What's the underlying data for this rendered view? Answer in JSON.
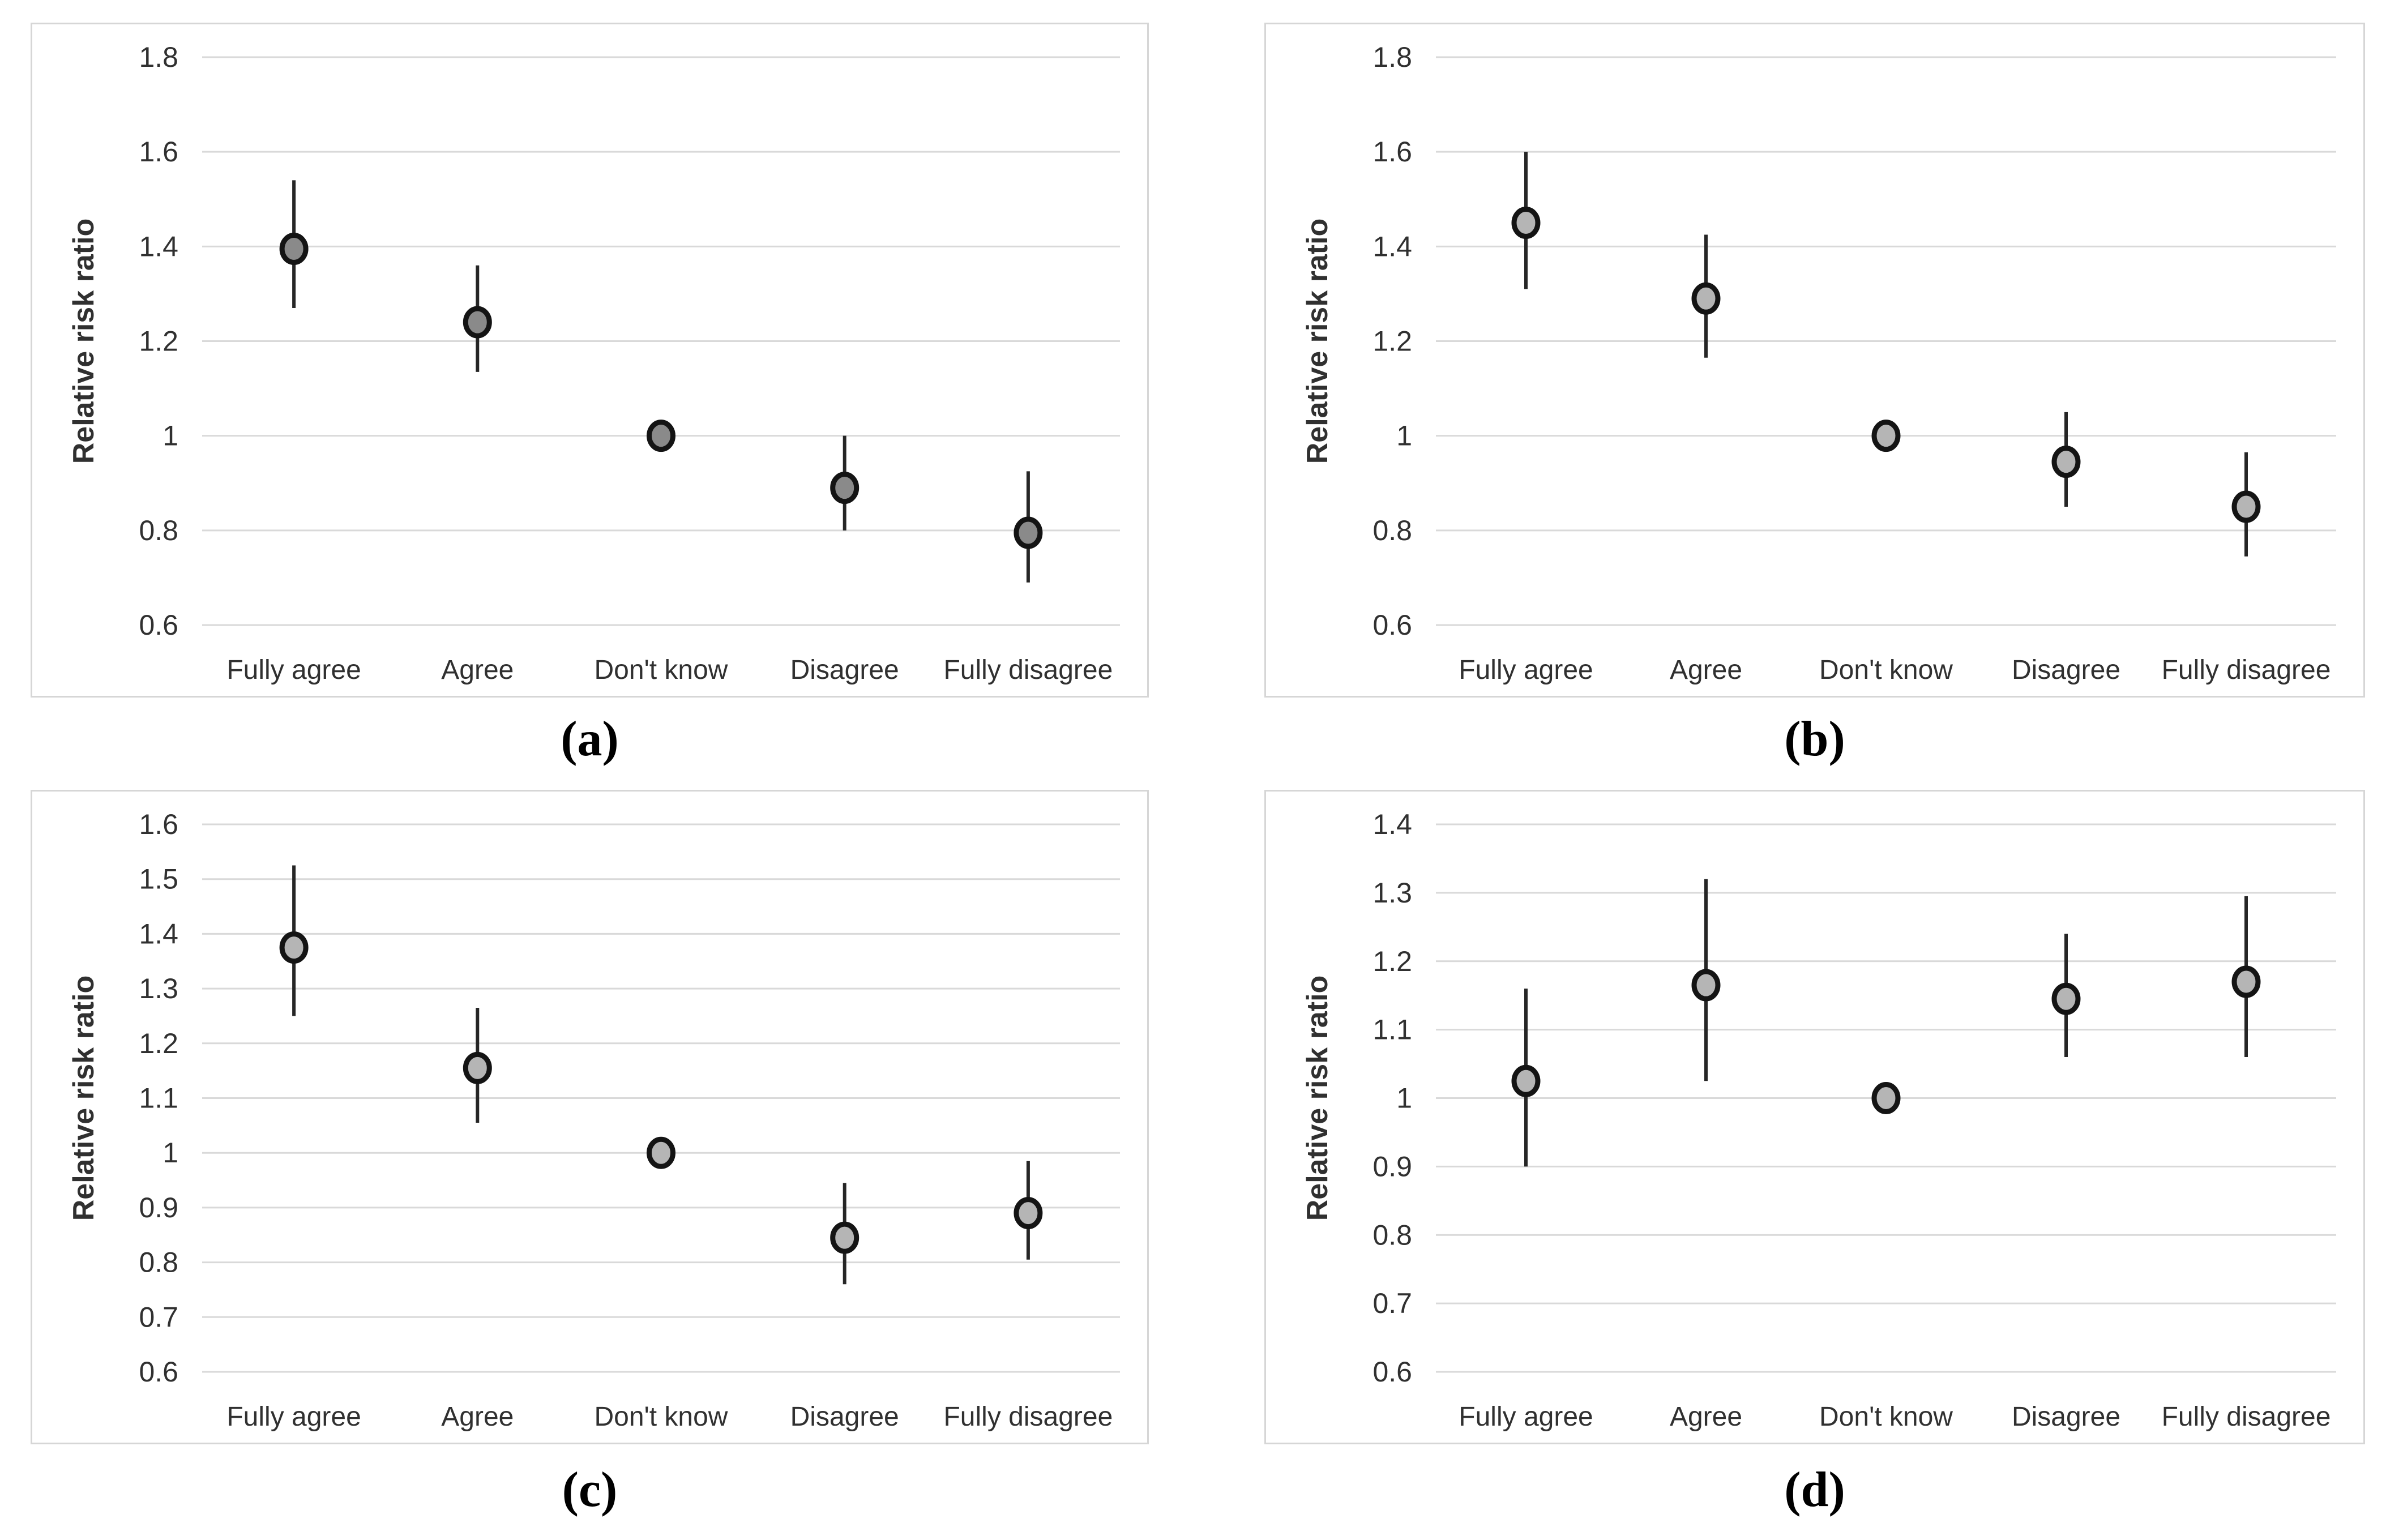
{
  "colors": {
    "background": "#ffffff",
    "panel_border": "#d6d6d6",
    "gridline": "#d9d9d9",
    "axis_text": "#303030",
    "error_bar": "#262626",
    "marker_stroke": "#141414",
    "marker_fill_panel_a": "#8a8a8a",
    "marker_fill_panels_bcd": "#b5b5b5"
  },
  "chart_data": [
    {
      "id": "a",
      "type": "scatter",
      "panel_label": "(a)",
      "ylabel": "Relative risk ratio",
      "ylim": [
        0.6,
        1.8
      ],
      "ytick_step": 0.2,
      "ytick_labels": [
        "0.6",
        "0.8",
        "1",
        "1.2",
        "1.4",
        "1.6",
        "1.8"
      ],
      "grid": true,
      "categories": [
        "Fully agree",
        "Agree",
        "Don't know",
        "Disagree",
        "Fully disagree"
      ],
      "values": [
        1.395,
        1.24,
        1.0,
        0.89,
        0.795
      ],
      "ci_low": [
        1.27,
        1.135,
        1.0,
        0.8,
        0.69
      ],
      "ci_high": [
        1.54,
        1.36,
        1.0,
        1.0,
        0.925
      ],
      "marker_fill": "#8a8a8a"
    },
    {
      "id": "b",
      "type": "scatter",
      "panel_label": "(b)",
      "ylabel": "Relative risk ratio",
      "ylim": [
        0.6,
        1.8
      ],
      "ytick_step": 0.2,
      "ytick_labels": [
        "0.6",
        "0.8",
        "1",
        "1.2",
        "1.4",
        "1.6",
        "1.8"
      ],
      "grid": true,
      "categories": [
        "Fully agree",
        "Agree",
        "Don't know",
        "Disagree",
        "Fully disagree"
      ],
      "values": [
        1.45,
        1.29,
        1.0,
        0.945,
        0.85
      ],
      "ci_low": [
        1.31,
        1.165,
        1.0,
        0.85,
        0.745
      ],
      "ci_high": [
        1.6,
        1.425,
        1.0,
        1.05,
        0.965
      ],
      "marker_fill": "#b5b5b5"
    },
    {
      "id": "c",
      "type": "scatter",
      "panel_label": "(c)",
      "ylabel": "Relative risk ratio",
      "ylim": [
        0.6,
        1.6
      ],
      "ytick_step": 0.1,
      "ytick_labels": [
        "0.6",
        "0.7",
        "0.8",
        "0.9",
        "1",
        "1.1",
        "1.2",
        "1.3",
        "1.4",
        "1.5",
        "1.6"
      ],
      "grid": true,
      "categories": [
        "Fully agree",
        "Agree",
        "Don't know",
        "Disagree",
        "Fully disagree"
      ],
      "values": [
        1.375,
        1.155,
        1.0,
        0.845,
        0.89
      ],
      "ci_low": [
        1.25,
        1.055,
        1.0,
        0.76,
        0.805
      ],
      "ci_high": [
        1.525,
        1.265,
        1.0,
        0.945,
        0.985
      ],
      "marker_fill": "#b5b5b5"
    },
    {
      "id": "d",
      "type": "scatter",
      "panel_label": "(d)",
      "ylabel": "Relative risk ratio",
      "ylim": [
        0.6,
        1.4
      ],
      "ytick_step": 0.1,
      "ytick_labels": [
        "0.6",
        "0.7",
        "0.8",
        "0.9",
        "1",
        "1.1",
        "1.2",
        "1.3",
        "1.4"
      ],
      "grid": true,
      "categories": [
        "Fully agree",
        "Agree",
        "Don't know",
        "Disagree",
        "Fully disagree"
      ],
      "values": [
        1.025,
        1.165,
        1.0,
        1.145,
        1.17
      ],
      "ci_low": [
        0.9,
        1.025,
        1.0,
        1.06,
        1.06
      ],
      "ci_high": [
        1.16,
        1.32,
        1.0,
        1.24,
        1.295
      ],
      "marker_fill": "#b5b5b5"
    }
  ]
}
